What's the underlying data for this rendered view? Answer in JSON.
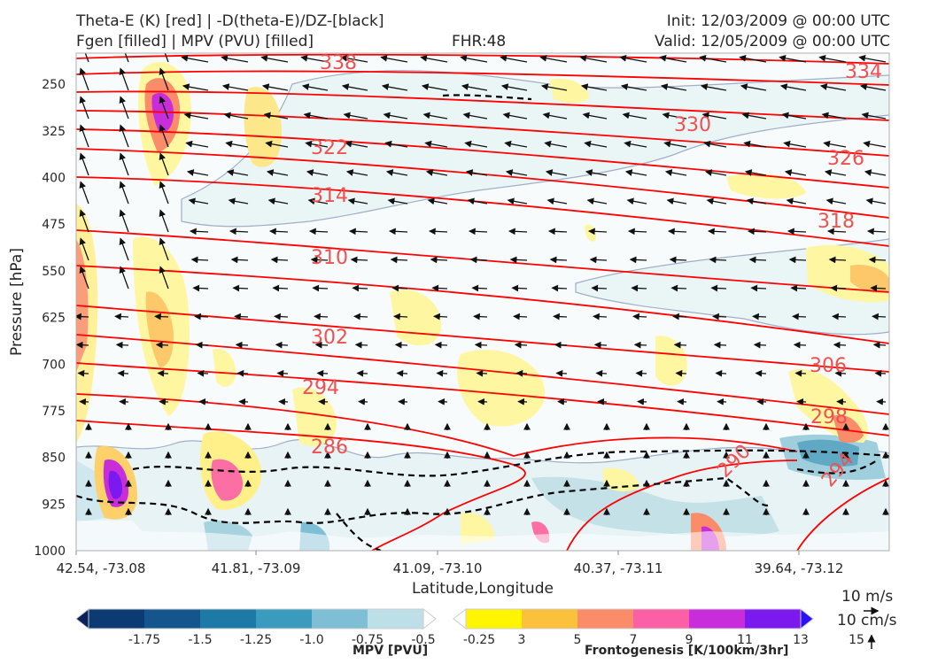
{
  "titles": {
    "line1": "Theta-E (K) [red] | -D(theta-E)/DZ-[black]",
    "line2": "Fgen [filled] | MPV (PVU) [filled]",
    "fhr": "FHR:48",
    "init": "Init: 12/03/2009 @ 00:00 UTC",
    "valid": "Valid: 12/05/2009 @ 00:00 UTC"
  },
  "chart_data": {
    "type": "cross-section",
    "xlabel": "Latitude,Longitude",
    "ylabel": "Pressure [hPa]",
    "x_ticks": [
      "42.54, -73.08",
      "41.81, -73.09",
      "41.09, -73.10",
      "40.37, -73.11",
      "39.64, -73.12"
    ],
    "y_ticks": [
      250,
      325,
      400,
      475,
      550,
      625,
      700,
      775,
      850,
      925,
      1000
    ],
    "ylim": [
      1000,
      200
    ],
    "theta_e_labels": [
      "338",
      "334",
      "330",
      "326",
      "322",
      "318",
      "314",
      "310",
      "306",
      "302",
      "298",
      "294",
      "290",
      "286",
      "294"
    ],
    "theta_e_color": "#ff0000",
    "label_color": "#f05050",
    "dthetae_dz_color": "#000000"
  },
  "mpv_colorbar": {
    "label": "MPV [PVU]",
    "ticks": [
      "-1.75",
      "-1.5",
      "-1.25",
      "-1.0",
      "-0.75",
      "-0.5",
      "-0.25"
    ],
    "colors": [
      "#08215a",
      "#0c3a73",
      "#13558c",
      "#1d7aa6",
      "#3a9bbf",
      "#7fbfd6",
      "#bcdfe8",
      "#ffffff"
    ]
  },
  "fgen_colorbar": {
    "label": "Frontogenesis [K/100km/3hr]",
    "ticks": [
      "3",
      "5",
      "7",
      "9",
      "11",
      "13",
      "15"
    ],
    "colors": [
      "#ffffff",
      "#fff500",
      "#fcc13a",
      "#fb8c6a",
      "#fb5fa5",
      "#c72ed9",
      "#7c19ef",
      "#2b10f7"
    ]
  },
  "wind_key": {
    "horizontal": "10 m/s",
    "vertical": "10 cm/s"
  }
}
